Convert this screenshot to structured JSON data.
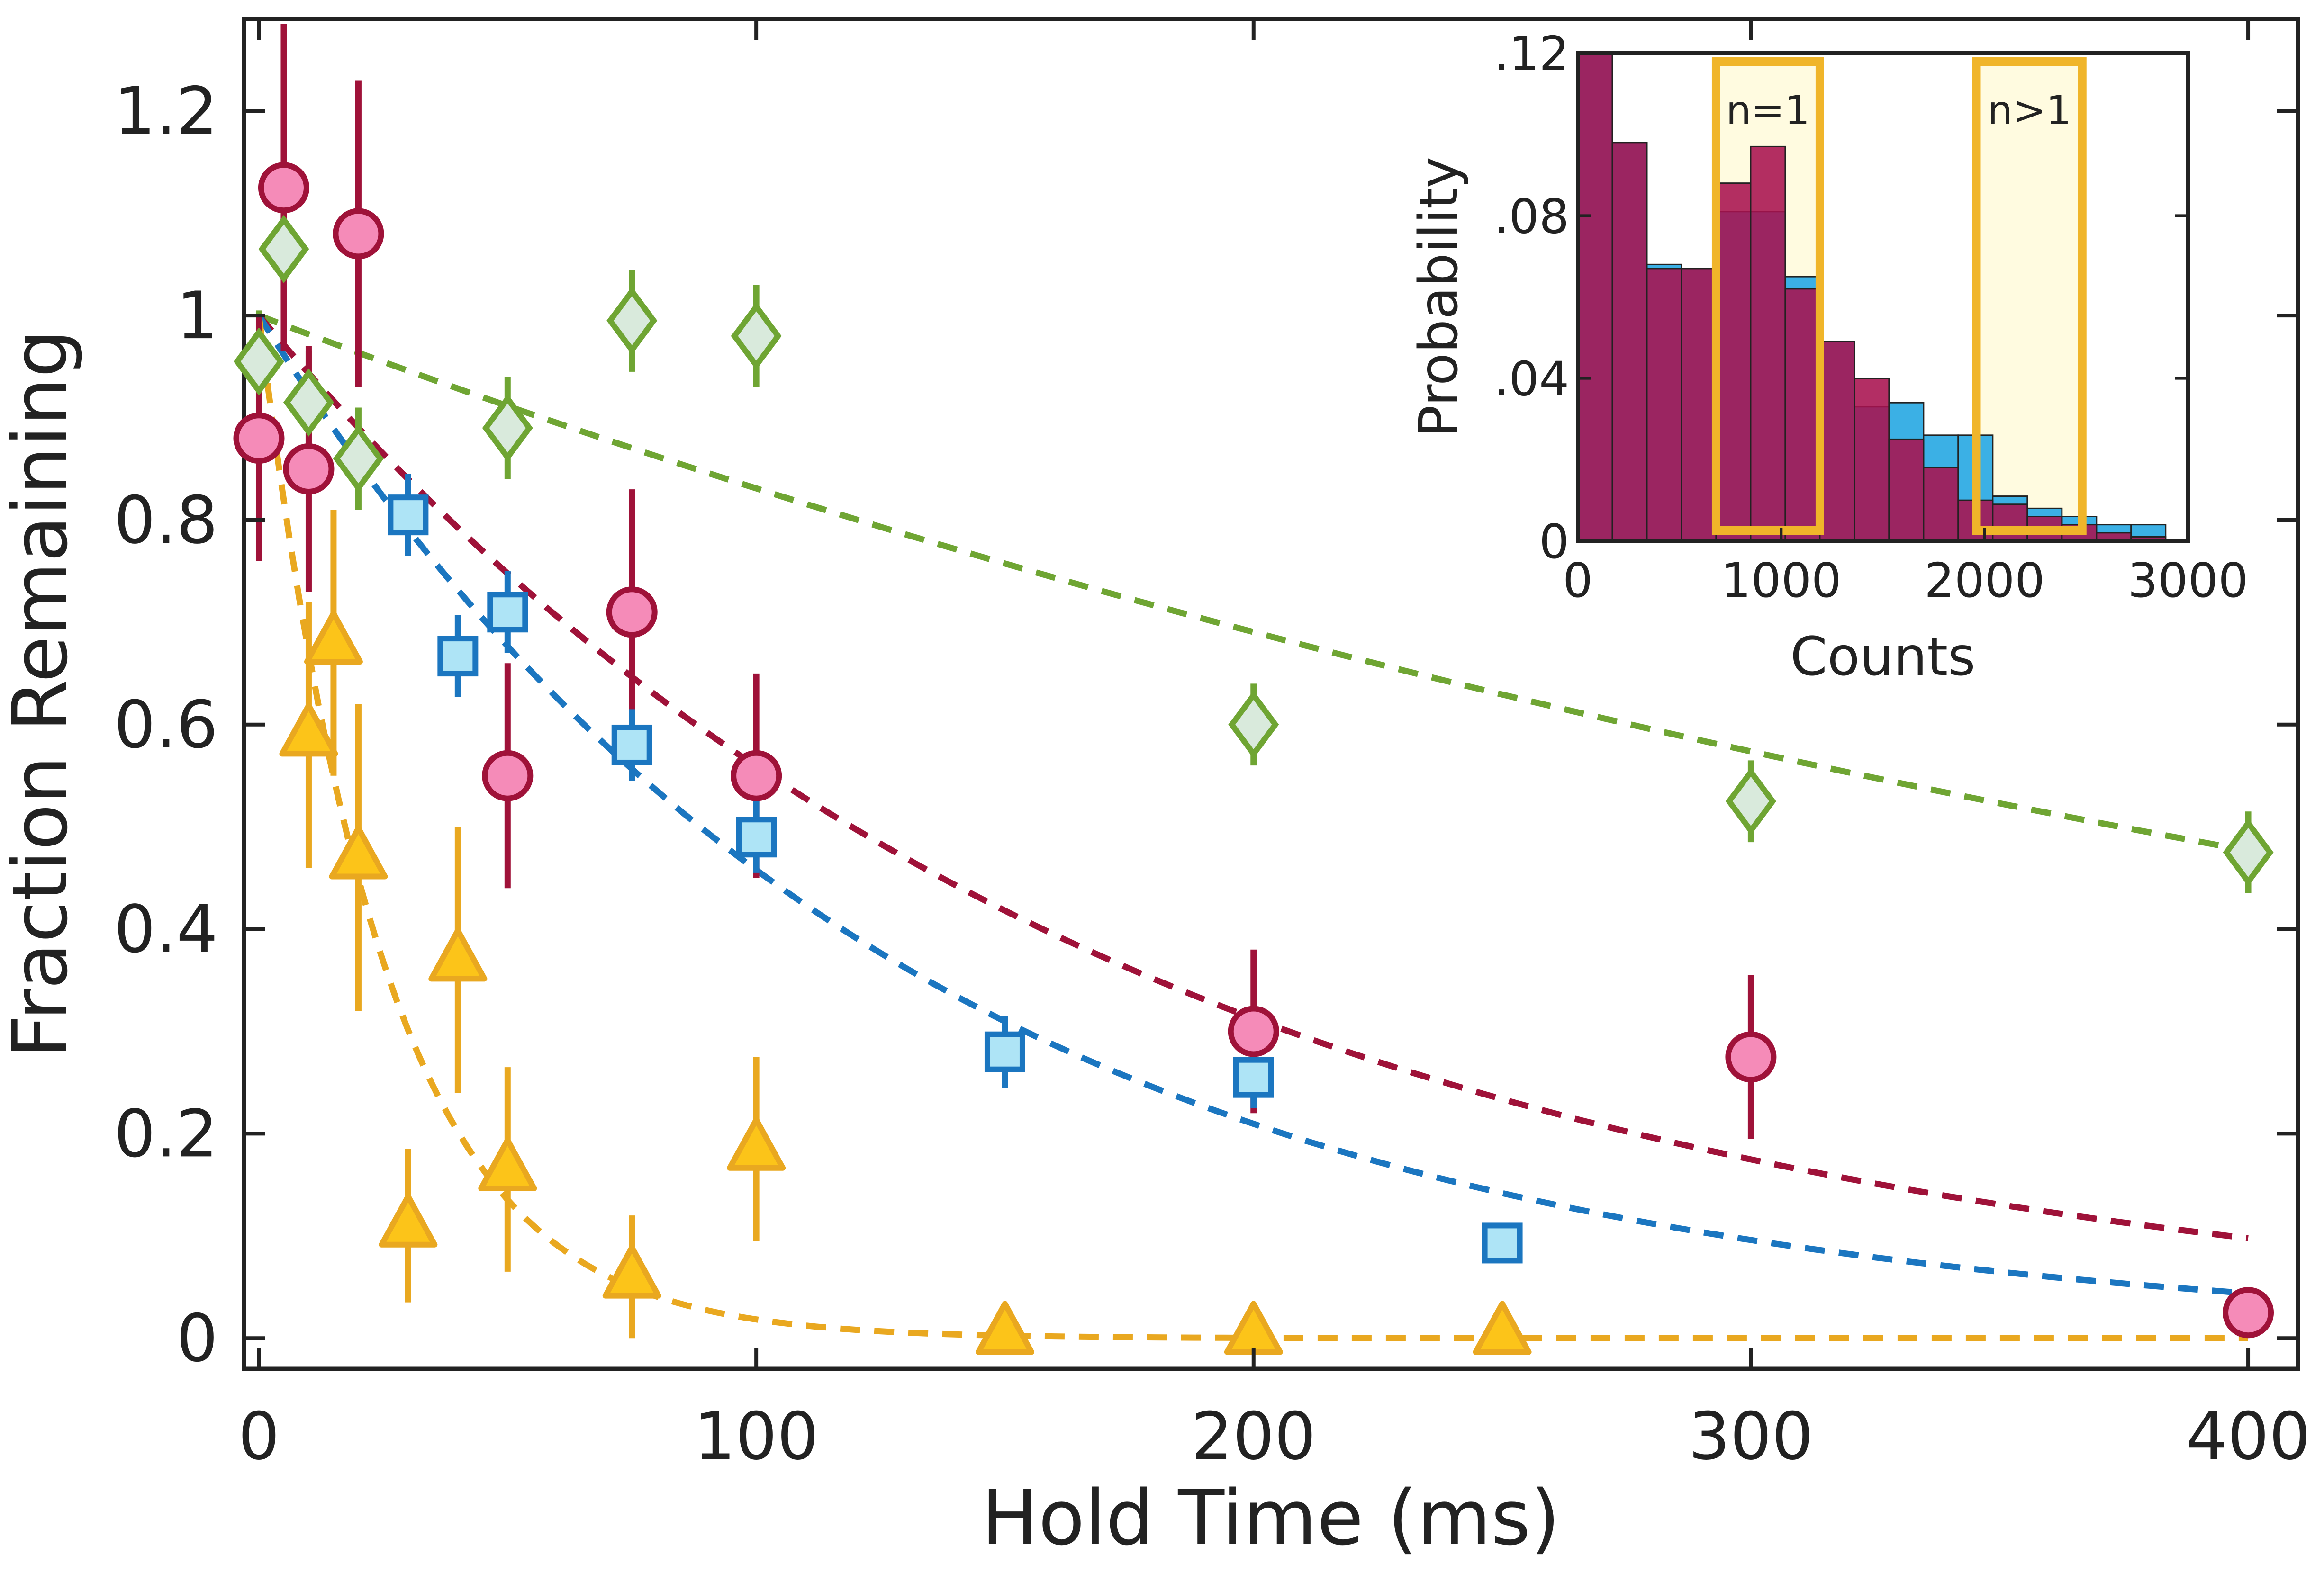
{
  "chart_data": [
    {
      "type": "scatter",
      "title": "",
      "xlabel": "Hold Time (ms)",
      "ylabel": "Fraction Remaining",
      "xlim": [
        -3,
        410
      ],
      "ylim": [
        -0.03,
        1.29
      ],
      "xticks": [
        0,
        100,
        200,
        300,
        400
      ],
      "xtick_labels": [
        "0",
        "100",
        "200",
        "300",
        "400"
      ],
      "yticks": [
        0,
        0.2,
        0.4,
        0.6,
        0.8,
        1,
        1.2
      ],
      "ytick_labels": [
        "0",
        "0.2",
        "0.4",
        "0.6",
        "0.8",
        "1",
        "1.2"
      ],
      "grid": false,
      "series": [
        {
          "name": "green diamonds",
          "marker": "diamond",
          "fill": "#d9eadc",
          "stroke": "#6fa533",
          "err": "#6fa533",
          "points": [
            {
              "x": 0,
              "y": 0.955,
              "err": 0.05
            },
            {
              "x": 5,
              "y": 1.065,
              "err": 0.05
            },
            {
              "x": 10,
              "y": 0.915,
              "err": 0.05
            },
            {
              "x": 20,
              "y": 0.86,
              "err": 0.05
            },
            {
              "x": 50,
              "y": 0.89,
              "err": 0.05
            },
            {
              "x": 75,
              "y": 0.995,
              "err": 0.05
            },
            {
              "x": 100,
              "y": 0.98,
              "err": 0.05
            },
            {
              "x": 200,
              "y": 0.6,
              "err": 0.04
            },
            {
              "x": 300,
              "y": 0.525,
              "err": 0.04
            },
            {
              "x": 400,
              "y": 0.475,
              "err": 0.04
            }
          ],
          "fit": {
            "model": "exponential",
            "a": 1.0,
            "tau": 540,
            "color": "#6fa533"
          }
        },
        {
          "name": "pink circles",
          "marker": "circle",
          "fill": "#f58bb8",
          "stroke": "#9f1239",
          "err": "#9f1239",
          "points": [
            {
              "x": 0,
              "y": 0.88,
              "err": 0.12
            },
            {
              "x": 5,
              "y": 1.125,
              "err": 0.16
            },
            {
              "x": 10,
              "y": 0.85,
              "err": 0.12
            },
            {
              "x": 20,
              "y": 1.08,
              "err": 0.15
            },
            {
              "x": 50,
              "y": 0.55,
              "err": 0.11
            },
            {
              "x": 75,
              "y": 0.71,
              "err": 0.12
            },
            {
              "x": 100,
              "y": 0.55,
              "err": 0.1
            },
            {
              "x": 200,
              "y": 0.3,
              "err": 0.08
            },
            {
              "x": 300,
              "y": 0.275,
              "err": 0.08
            },
            {
              "x": 400,
              "y": 0.025,
              "err": 0.0
            }
          ],
          "fit": {
            "model": "exponential",
            "a": 1.0,
            "tau": 172,
            "color": "#9f1239"
          }
        },
        {
          "name": "blue squares",
          "marker": "square",
          "fill": "#aee4f6",
          "stroke": "#1b76c0",
          "err": "#1b76c0",
          "points": [
            {
              "x": 30,
              "y": 0.805,
              "err": 0.04
            },
            {
              "x": 40,
              "y": 0.667,
              "err": 0.04
            },
            {
              "x": 50,
              "y": 0.71,
              "err": 0.04
            },
            {
              "x": 75,
              "y": 0.58,
              "err": 0.035
            },
            {
              "x": 100,
              "y": 0.49,
              "err": 0.035
            },
            {
              "x": 150,
              "y": 0.28,
              "err": 0.035
            },
            {
              "x": 200,
              "y": 0.255,
              "err": 0.03
            },
            {
              "x": 250,
              "y": 0.093,
              "err": 0.0
            }
          ],
          "fit": {
            "model": "exponential",
            "a": 1.0,
            "tau": 128,
            "color": "#1b76c0"
          }
        },
        {
          "name": "yellow triangles",
          "marker": "triangle",
          "fill": "#fcc419",
          "stroke": "#e9a820",
          "err": "#e9a820",
          "points": [
            {
              "x": 10,
              "y": 0.59,
              "err": 0.13
            },
            {
              "x": 15,
              "y": 0.68,
              "err": 0.13
            },
            {
              "x": 20,
              "y": 0.47,
              "err": 0.15
            },
            {
              "x": 30,
              "y": 0.11,
              "err": 0.075
            },
            {
              "x": 40,
              "y": 0.37,
              "err": 0.13
            },
            {
              "x": 50,
              "y": 0.165,
              "err": 0.1
            },
            {
              "x": 75,
              "y": 0.06,
              "err": 0.06
            },
            {
              "x": 100,
              "y": 0.185,
              "err": 0.09
            },
            {
              "x": 150,
              "y": 0.005,
              "err": 0.0
            },
            {
              "x": 200,
              "y": 0.005,
              "err": 0.0
            },
            {
              "x": 250,
              "y": 0.005,
              "err": 0.0
            }
          ],
          "fit": {
            "model": "exponential",
            "a": 1.0,
            "tau": 25,
            "color": "#e9a820"
          }
        }
      ]
    },
    {
      "type": "bar",
      "subtype": "histogram",
      "title": "",
      "xlabel": "Counts",
      "ylabel": "Probability",
      "xlim": [
        0,
        3000
      ],
      "ylim": [
        0,
        0.12
      ],
      "xticks": [
        0,
        1000,
        2000,
        3000
      ],
      "xtick_labels": [
        "0",
        "1000",
        "2000",
        "3000"
      ],
      "yticks": [
        0,
        0.04,
        0.08,
        0.12
      ],
      "ytick_labels": [
        "0",
        ".04",
        ".08",
        ".12"
      ],
      "legend_position": "none",
      "bin_width": 170,
      "series": [
        {
          "name": "blue histogram",
          "color": "#3bb0e5",
          "bins": [
            {
              "x0": 0,
              "value": 0.12
            },
            {
              "x0": 170,
              "value": 0.098
            },
            {
              "x0": 340,
              "value": 0.068
            },
            {
              "x0": 510,
              "value": 0.067
            },
            {
              "x0": 680,
              "value": 0.081
            },
            {
              "x0": 850,
              "value": 0.081
            },
            {
              "x0": 1020,
              "value": 0.065
            },
            {
              "x0": 1190,
              "value": 0.049
            },
            {
              "x0": 1360,
              "value": 0.033
            },
            {
              "x0": 1530,
              "value": 0.034
            },
            {
              "x0": 1700,
              "value": 0.026
            },
            {
              "x0": 1870,
              "value": 0.026
            },
            {
              "x0": 2040,
              "value": 0.011
            },
            {
              "x0": 2210,
              "value": 0.008
            },
            {
              "x0": 2380,
              "value": 0.006
            },
            {
              "x0": 2550,
              "value": 0.004
            },
            {
              "x0": 2720,
              "value": 0.004
            }
          ]
        },
        {
          "name": "red histogram",
          "color": "#a8114e",
          "bins": [
            {
              "x0": 0,
              "value": 0.12
            },
            {
              "x0": 170,
              "value": 0.098
            },
            {
              "x0": 340,
              "value": 0.067
            },
            {
              "x0": 510,
              "value": 0.067
            },
            {
              "x0": 680,
              "value": 0.088
            },
            {
              "x0": 850,
              "value": 0.097
            },
            {
              "x0": 1020,
              "value": 0.062
            },
            {
              "x0": 1190,
              "value": 0.049
            },
            {
              "x0": 1360,
              "value": 0.04
            },
            {
              "x0": 1530,
              "value": 0.025
            },
            {
              "x0": 1700,
              "value": 0.018
            },
            {
              "x0": 1870,
              "value": 0.01
            },
            {
              "x0": 2040,
              "value": 0.009
            },
            {
              "x0": 2210,
              "value": 0.006
            },
            {
              "x0": 2380,
              "value": 0.004
            },
            {
              "x0": 2550,
              "value": 0.002
            },
            {
              "x0": 2720,
              "value": 0.001
            }
          ]
        }
      ],
      "annotations": [
        {
          "label": "n=1",
          "x0": 680,
          "x1": 1190,
          "color": "#f0b52a",
          "fill": "#fffbe0"
        },
        {
          "label": "n>1",
          "x0": 1960,
          "x1": 2480,
          "color": "#f0b52a",
          "fill": "#fffbe0"
        }
      ]
    }
  ]
}
